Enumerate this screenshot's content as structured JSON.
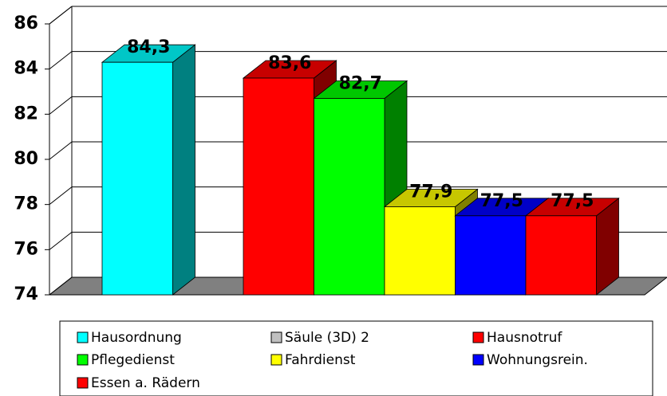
{
  "chart_data": {
    "type": "bar3d",
    "series": [
      {
        "name": "Hausordnung",
        "color": "#00ffff",
        "values": [
          84.3
        ],
        "value_labels": [
          "84,3"
        ]
      },
      {
        "name": "Säule (3D) 2",
        "color": "#c0c0c0",
        "values": [
          null
        ],
        "value_labels": [
          null
        ]
      },
      {
        "name": "Hausnotruf",
        "color": "#ff0000",
        "values": [
          83.6
        ],
        "value_labels": [
          "83,6"
        ]
      },
      {
        "name": "Pflegedienst",
        "color": "#00ff00",
        "values": [
          82.7
        ],
        "value_labels": [
          "82,7"
        ]
      },
      {
        "name": "Fahrdienst",
        "color": "#ffff00",
        "values": [
          77.9
        ],
        "value_labels": [
          "77,9"
        ]
      },
      {
        "name": "Wohnungsrein.",
        "color": "#0000ff",
        "values": [
          77.5
        ],
        "value_labels": [
          "77,5"
        ]
      },
      {
        "name": "Essen a. Rädern",
        "color": "#ff0000",
        "values": [
          77.5
        ],
        "value_labels": [
          "77,5"
        ]
      }
    ],
    "ylim": [
      74,
      86
    ],
    "yticks": [
      74,
      76,
      78,
      80,
      82,
      84,
      86
    ],
    "grid": true,
    "legend": "bottom"
  }
}
